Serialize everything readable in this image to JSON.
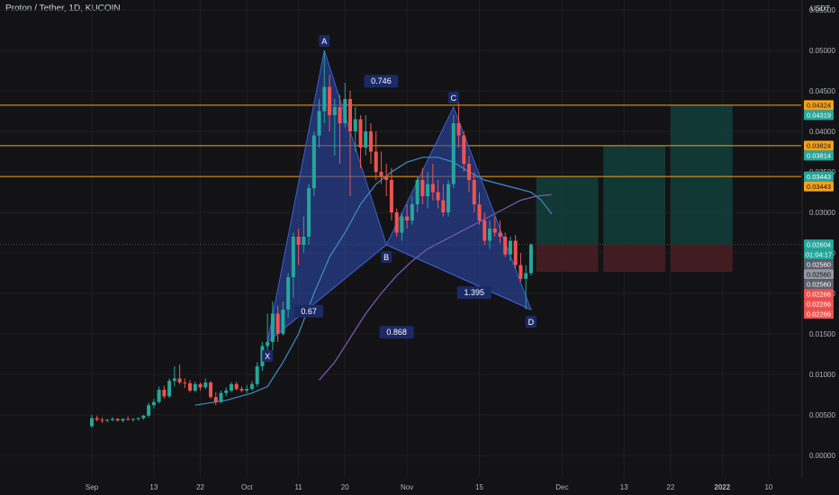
{
  "title": "Proton / Tether, 1D, KUCOIN",
  "currency": "USDT",
  "colors": {
    "background": "#131315",
    "up": "#26a69a",
    "down": "#ef5350",
    "pattern_fill": "#2c47a8",
    "level_line": "#f7a21b",
    "ma_fast": "#3d8ec9",
    "ma_slow": "#7b5cb8",
    "target_zone": "#12403a",
    "stop_zone": "#4a1f22",
    "axis_text": "#b2b5be"
  },
  "chart_data": {
    "type": "candlestick",
    "y_axis": {
      "ticks": [
        "0.05500",
        "0.05000",
        "0.04500",
        "0.04000",
        "0.03500",
        "0.03000",
        "0.02500",
        "0.02000",
        "0.01500",
        "0.01000",
        "0.00500",
        "0.00000"
      ],
      "tick_values": [
        0.055,
        0.05,
        0.045,
        0.04,
        0.035,
        0.03,
        0.025,
        0.02,
        0.015,
        0.01,
        0.005,
        0.0
      ]
    },
    "x_axis": {
      "labels": [
        "Sep",
        "13",
        "22",
        "Oct",
        "11",
        "20",
        "Nov",
        "15",
        "Dec",
        "13",
        "22",
        "2022",
        "10"
      ],
      "label_days": [
        0,
        12,
        21,
        30,
        40,
        49,
        61,
        75,
        91,
        103,
        112,
        122,
        131
      ],
      "bold_labels": [
        "2022"
      ]
    },
    "candles": [
      [
        0.0036,
        0.005,
        0.0034,
        0.0046
      ],
      [
        0.0046,
        0.0049,
        0.0042,
        0.0044
      ],
      [
        0.0044,
        0.0047,
        0.004,
        0.0043
      ],
      [
        0.0043,
        0.0045,
        0.0041,
        0.0044
      ],
      [
        0.0044,
        0.0047,
        0.0042,
        0.0045
      ],
      [
        0.0045,
        0.0046,
        0.0042,
        0.0043
      ],
      [
        0.0043,
        0.0046,
        0.0041,
        0.0045
      ],
      [
        0.0045,
        0.0048,
        0.0043,
        0.0044
      ],
      [
        0.0044,
        0.0046,
        0.0042,
        0.0045
      ],
      [
        0.0045,
        0.0047,
        0.0043,
        0.0046
      ],
      [
        0.0046,
        0.005,
        0.0044,
        0.0049
      ],
      [
        0.0049,
        0.0065,
        0.0047,
        0.0062
      ],
      [
        0.0062,
        0.007,
        0.0058,
        0.0066
      ],
      [
        0.0066,
        0.0085,
        0.0064,
        0.0081
      ],
      [
        0.0081,
        0.0086,
        0.007,
        0.0073
      ],
      [
        0.0073,
        0.0095,
        0.0071,
        0.0092
      ],
      [
        0.0092,
        0.011,
        0.0085,
        0.0095
      ],
      [
        0.0095,
        0.0112,
        0.0088,
        0.009
      ],
      [
        0.009,
        0.0095,
        0.0083,
        0.0089
      ],
      [
        0.0089,
        0.0093,
        0.0078,
        0.008
      ],
      [
        0.008,
        0.0091,
        0.0078,
        0.0088
      ],
      [
        0.0088,
        0.009,
        0.008,
        0.0084
      ],
      [
        0.0084,
        0.0095,
        0.0082,
        0.009
      ],
      [
        0.009,
        0.0092,
        0.007,
        0.0072
      ],
      [
        0.0072,
        0.0078,
        0.0062,
        0.0066
      ],
      [
        0.0066,
        0.008,
        0.0064,
        0.0077
      ],
      [
        0.0077,
        0.0084,
        0.0073,
        0.008
      ],
      [
        0.008,
        0.009,
        0.0078,
        0.0088
      ],
      [
        0.0088,
        0.0091,
        0.008,
        0.0082
      ],
      [
        0.0082,
        0.0085,
        0.0078,
        0.008
      ],
      [
        0.008,
        0.0087,
        0.0077,
        0.0082
      ],
      [
        0.0082,
        0.0092,
        0.008,
        0.0088
      ],
      [
        0.0088,
        0.0115,
        0.0085,
        0.011
      ],
      [
        0.011,
        0.014,
        0.0104,
        0.0135
      ],
      [
        0.0135,
        0.0175,
        0.0125,
        0.014
      ],
      [
        0.014,
        0.019,
        0.013,
        0.0175
      ],
      [
        0.0175,
        0.0185,
        0.014,
        0.015
      ],
      [
        0.015,
        0.019,
        0.0148,
        0.018
      ],
      [
        0.018,
        0.0225,
        0.017,
        0.022
      ],
      [
        0.022,
        0.0275,
        0.0195,
        0.027
      ],
      [
        0.027,
        0.028,
        0.0235,
        0.026
      ],
      [
        0.026,
        0.0295,
        0.025,
        0.027
      ],
      [
        0.027,
        0.0335,
        0.026,
        0.033
      ],
      [
        0.033,
        0.04,
        0.032,
        0.0395
      ],
      [
        0.0395,
        0.044,
        0.038,
        0.0425
      ],
      [
        0.0425,
        0.05,
        0.041,
        0.0455
      ],
      [
        0.0455,
        0.047,
        0.04,
        0.042
      ],
      [
        0.042,
        0.044,
        0.037,
        0.043
      ],
      [
        0.043,
        0.0445,
        0.036,
        0.041
      ],
      [
        0.041,
        0.046,
        0.0405,
        0.044
      ],
      [
        0.044,
        0.045,
        0.032,
        0.04
      ],
      [
        0.04,
        0.043,
        0.0375,
        0.0415
      ],
      [
        0.0415,
        0.042,
        0.0355,
        0.038
      ],
      [
        0.038,
        0.042,
        0.037,
        0.04
      ],
      [
        0.04,
        0.041,
        0.036,
        0.0375
      ],
      [
        0.0375,
        0.04,
        0.034,
        0.035
      ],
      [
        0.035,
        0.0375,
        0.0335,
        0.0345
      ],
      [
        0.0345,
        0.036,
        0.032,
        0.034
      ],
      [
        0.034,
        0.0355,
        0.029,
        0.03
      ],
      [
        0.03,
        0.0305,
        0.027,
        0.0275
      ],
      [
        0.0275,
        0.03,
        0.0265,
        0.0295
      ],
      [
        0.0295,
        0.031,
        0.028,
        0.029
      ],
      [
        0.029,
        0.032,
        0.0285,
        0.031
      ],
      [
        0.031,
        0.0345,
        0.03,
        0.034
      ],
      [
        0.034,
        0.0355,
        0.031,
        0.032
      ],
      [
        0.032,
        0.035,
        0.0305,
        0.0335
      ],
      [
        0.0335,
        0.036,
        0.0315,
        0.0325
      ],
      [
        0.0325,
        0.034,
        0.0305,
        0.0315
      ],
      [
        0.0315,
        0.0335,
        0.0295,
        0.03
      ],
      [
        0.03,
        0.034,
        0.0295,
        0.0335
      ],
      [
        0.0335,
        0.042,
        0.033,
        0.041
      ],
      [
        0.041,
        0.0435,
        0.038,
        0.0395
      ],
      [
        0.0395,
        0.04,
        0.035,
        0.036
      ],
      [
        0.036,
        0.037,
        0.0325,
        0.034
      ],
      [
        0.034,
        0.035,
        0.03,
        0.031
      ],
      [
        0.031,
        0.0325,
        0.0285,
        0.029
      ],
      [
        0.029,
        0.03,
        0.026,
        0.0265
      ],
      [
        0.0265,
        0.029,
        0.0255,
        0.028
      ],
      [
        0.028,
        0.0295,
        0.027,
        0.0275
      ],
      [
        0.0275,
        0.029,
        0.0262,
        0.027
      ],
      [
        0.027,
        0.0275,
        0.0245,
        0.0248
      ],
      [
        0.0248,
        0.027,
        0.024,
        0.0265
      ],
      [
        0.0265,
        0.0272,
        0.023,
        0.0235
      ],
      [
        0.0235,
        0.025,
        0.0215,
        0.0218
      ],
      [
        0.0218,
        0.0235,
        0.018,
        0.0225
      ],
      [
        0.0225,
        0.0262,
        0.0222,
        0.026
      ]
    ],
    "ma_fast": [
      [
        20,
        0.0062
      ],
      [
        26,
        0.0068
      ],
      [
        31,
        0.0077
      ],
      [
        34,
        0.0085
      ],
      [
        37,
        0.0115
      ],
      [
        40,
        0.015
      ],
      [
        43,
        0.02
      ],
      [
        46,
        0.0245
      ],
      [
        49,
        0.0275
      ],
      [
        52,
        0.031
      ],
      [
        55,
        0.0335
      ],
      [
        58,
        0.035
      ],
      [
        61,
        0.0362
      ],
      [
        64,
        0.0368
      ],
      [
        67,
        0.0368
      ],
      [
        70,
        0.0362
      ],
      [
        73,
        0.035
      ],
      [
        76,
        0.034
      ],
      [
        79,
        0.0335
      ],
      [
        82,
        0.033
      ],
      [
        85,
        0.0325
      ],
      [
        87,
        0.0315
      ],
      [
        89,
        0.0298
      ]
    ],
    "ma_slow": [
      [
        44,
        0.0093
      ],
      [
        47,
        0.0115
      ],
      [
        50,
        0.0145
      ],
      [
        53,
        0.0175
      ],
      [
        56,
        0.02
      ],
      [
        59,
        0.0222
      ],
      [
        62,
        0.024
      ],
      [
        65,
        0.0255
      ],
      [
        68,
        0.0265
      ],
      [
        71,
        0.0275
      ],
      [
        74,
        0.0285
      ],
      [
        77,
        0.0295
      ],
      [
        80,
        0.0305
      ],
      [
        83,
        0.0315
      ],
      [
        86,
        0.032
      ],
      [
        89,
        0.0322
      ]
    ],
    "harmonic_pattern": {
      "points": {
        "X": [
          34,
          0.014
        ],
        "A": [
          45,
          0.05
        ],
        "B": [
          57,
          0.026
        ],
        "C": [
          70,
          0.043
        ],
        "D": [
          85,
          0.018
        ]
      },
      "point_labels": [
        "X",
        "A",
        "B",
        "C",
        "D"
      ],
      "ratios": [
        {
          "text": "0.746",
          "anchor": [
            56,
            0.0462
          ]
        },
        {
          "text": "0.67",
          "anchor": [
            42,
            0.0178
          ]
        },
        {
          "text": "0.868",
          "anchor": [
            59,
            0.0152
          ]
        },
        {
          "text": "1.395",
          "anchor": [
            74,
            0.0201
          ]
        }
      ]
    },
    "levels": [
      0.04324,
      0.03824,
      0.03443
    ],
    "current_price": 0.02604,
    "zones": [
      {
        "start": 86,
        "end": 98,
        "target": 0.03443,
        "entry": 0.02604,
        "stop": 0.02266
      },
      {
        "start": 99,
        "end": 111,
        "target": 0.03824,
        "entry": 0.02604,
        "stop": 0.02266
      },
      {
        "start": 112,
        "end": 124,
        "target": 0.04324,
        "entry": 0.02604,
        "stop": 0.02266
      }
    ],
    "price_tags": [
      {
        "text": "0.04324",
        "value": 0.04324,
        "kind": "orange"
      },
      {
        "text": "0.04319",
        "value": 0.04319,
        "kind": "teal"
      },
      {
        "text": "0.03824",
        "value": 0.03824,
        "kind": "orange"
      },
      {
        "text": "0.03814",
        "value": 0.03814,
        "kind": "teal"
      },
      {
        "text": "0.03443",
        "value": 0.03443,
        "kind": "teal"
      },
      {
        "text": "0.03443",
        "value": 0.03443,
        "kind": "orange"
      },
      {
        "text": "0.02604",
        "value": 0.02604,
        "kind": "teal"
      },
      {
        "text": "01:04:17",
        "value": 0.02604,
        "kind": "teal-time"
      },
      {
        "text": "0.02560",
        "value": 0.0256,
        "kind": "gray-dark"
      },
      {
        "text": "0.02560",
        "value": 0.0256,
        "kind": "gray-light"
      },
      {
        "text": "0.02560",
        "value": 0.0256,
        "kind": "gray-dark"
      },
      {
        "text": "0.02266",
        "value": 0.02266,
        "kind": "red"
      },
      {
        "text": "0.02266",
        "value": 0.02266,
        "kind": "red"
      },
      {
        "text": "0.02266",
        "value": 0.02266,
        "kind": "red"
      }
    ]
  }
}
